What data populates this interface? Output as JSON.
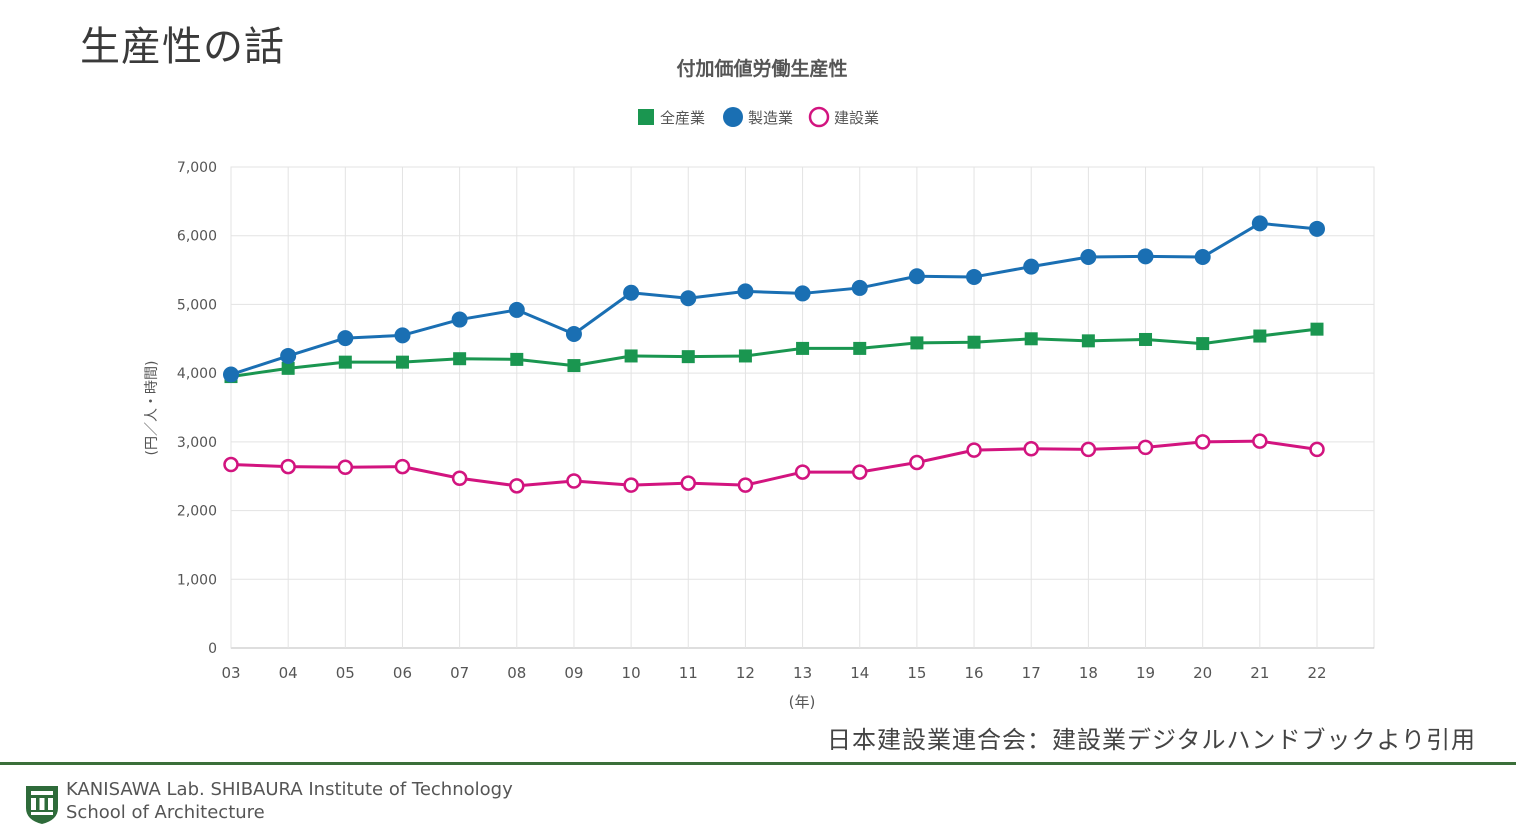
{
  "slide": {
    "title": "生産性の話",
    "citation": "日本建設業連合会：建設業デジタルハンドブックより引用",
    "footer_line1": "KANISAWA Lab. SHIBAURA Institute of  Technology",
    "footer_line2": "School of Architecture"
  },
  "colors": {
    "all_industries": "#1a9650",
    "manufacturing": "#1a6fb3",
    "construction": "#d2147f",
    "footer_rule": "#3b6f3a"
  },
  "chart_data": {
    "type": "line",
    "title": "付加価値労働生産性",
    "xlabel": "(年)",
    "ylabel": "(円／人・時間)",
    "ylim": [
      0,
      7000
    ],
    "yticks": [
      0,
      1000,
      2000,
      3000,
      4000,
      5000,
      6000,
      7000
    ],
    "ytick_labels": [
      "0",
      "1,000",
      "2,000",
      "3,000",
      "4,000",
      "5,000",
      "6,000",
      "7,000"
    ],
    "grid": true,
    "legend_position": "top-center",
    "categories": [
      "03",
      "04",
      "05",
      "06",
      "07",
      "08",
      "09",
      "10",
      "11",
      "12",
      "13",
      "14",
      "15",
      "16",
      "17",
      "18",
      "19",
      "20",
      "21",
      "22"
    ],
    "series": [
      {
        "name": "全産業",
        "marker": "square",
        "color": "#1a9650",
        "values": [
          3950,
          4070,
          4160,
          4160,
          4210,
          4200,
          4110,
          4250,
          4240,
          4250,
          4360,
          4360,
          4440,
          4450,
          4500,
          4470,
          4490,
          4430,
          4540,
          4640
        ]
      },
      {
        "name": "製造業",
        "marker": "circle-filled",
        "color": "#1a6fb3",
        "values": [
          3980,
          4250,
          4510,
          4550,
          4780,
          4920,
          4570,
          5170,
          5090,
          5190,
          5160,
          5240,
          5410,
          5400,
          5550,
          5690,
          5700,
          5690,
          6180,
          6100
        ]
      },
      {
        "name": "建設業",
        "marker": "circle-open",
        "color": "#d2147f",
        "values": [
          2670,
          2640,
          2630,
          2640,
          2470,
          2360,
          2430,
          2370,
          2400,
          2370,
          2560,
          2560,
          2700,
          2880,
          2900,
          2890,
          2920,
          3000,
          3010,
          2890
        ]
      }
    ]
  }
}
